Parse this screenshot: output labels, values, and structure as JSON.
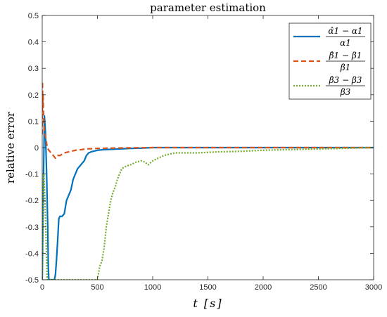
{
  "chart_data": {
    "type": "line",
    "title": "parameter estimation",
    "xlabel": "t [s]",
    "ylabel": "relative error",
    "xlim": [
      0,
      3000
    ],
    "ylim": [
      -0.5,
      0.5
    ],
    "xticks": [
      0,
      500,
      1000,
      1500,
      2000,
      2500,
      3000
    ],
    "yticks": [
      -0.5,
      -0.4,
      -0.3,
      -0.2,
      -0.1,
      0,
      0.1,
      0.2,
      0.3,
      0.4,
      0.5
    ],
    "xtick_labels": [
      "0",
      "500",
      "1000",
      "1500",
      "2000",
      "2500",
      "3000"
    ],
    "ytick_labels": [
      "-0.5",
      "-0.4",
      "-0.3",
      "-0.2",
      "-0.1",
      "0",
      "0.1",
      "0.2",
      "0.3",
      "0.4",
      "0.5"
    ],
    "legend_position": "top-right",
    "grid": false,
    "series": [
      {
        "name": "(α̂1 − α1) / α1",
        "legend_numerator": "α̂1 − α1",
        "legend_denominator": "α1",
        "color": "#0072BD",
        "style": "solid",
        "x": [
          0,
          2,
          6,
          12,
          20,
          30,
          40,
          50,
          55,
          60,
          70,
          80,
          90,
          100,
          110,
          120,
          130,
          140,
          150,
          160,
          180,
          200,
          220,
          240,
          260,
          280,
          300,
          320,
          340,
          360,
          380,
          400,
          420,
          450,
          500,
          550,
          600,
          650,
          700,
          800,
          900,
          1000,
          1200,
          1500,
          2000,
          2500,
          3000
        ],
        "y": [
          -0.5,
          -0.45,
          -0.3,
          -0.1,
          0.12,
          0.05,
          -0.1,
          -0.3,
          -0.45,
          -0.5,
          -0.5,
          -0.5,
          -0.5,
          -0.5,
          -0.5,
          -0.48,
          -0.42,
          -0.35,
          -0.27,
          -0.26,
          -0.26,
          -0.25,
          -0.2,
          -0.18,
          -0.16,
          -0.12,
          -0.1,
          -0.08,
          -0.07,
          -0.06,
          -0.05,
          -0.03,
          -0.02,
          -0.015,
          -0.01,
          -0.008,
          -0.007,
          -0.006,
          -0.005,
          -0.003,
          -0.002,
          0.0,
          0.0,
          0.0,
          0.0,
          0.0,
          0.0
        ]
      },
      {
        "name": "(β̂1 − β1) / β1",
        "legend_numerator": "β̂1 − β1",
        "legend_denominator": "β1",
        "color": "#D95319",
        "style": "dashed",
        "x": [
          0,
          2,
          5,
          8,
          12,
          18,
          25,
          35,
          45,
          60,
          80,
          100,
          120,
          140,
          160,
          180,
          200,
          250,
          300,
          350,
          400,
          500,
          600,
          800,
          1000,
          1500,
          2000,
          2500,
          3000
        ],
        "y": [
          0.05,
          0.25,
          0.15,
          0.2,
          0.12,
          0.06,
          0.05,
          0.03,
          0.0,
          -0.01,
          -0.02,
          -0.03,
          -0.04,
          -0.03,
          -0.03,
          -0.025,
          -0.02,
          -0.015,
          -0.01,
          -0.008,
          -0.005,
          -0.003,
          -0.002,
          -0.001,
          0.0,
          0.0,
          0.0,
          0.0,
          0.0
        ]
      },
      {
        "name": "(β̂3 − β3) / β3",
        "legend_numerator": "β̂3 − β3",
        "legend_denominator": "β3",
        "color": "#77AC30",
        "style": "dotted",
        "x": [
          0,
          3,
          8,
          15,
          25,
          35,
          45,
          60,
          80,
          100,
          200,
          300,
          400,
          480,
          500,
          520,
          540,
          560,
          580,
          600,
          620,
          640,
          660,
          680,
          700,
          720,
          740,
          760,
          800,
          850,
          900,
          930,
          960,
          1000,
          1050,
          1100,
          1150,
          1200,
          1300,
          1400,
          1500,
          1600,
          1700,
          1800,
          1900,
          2000,
          2100,
          2200,
          2300,
          2400,
          2500,
          2600,
          2700,
          2800,
          2900,
          3000
        ],
        "y": [
          -0.5,
          -0.35,
          -0.15,
          -0.1,
          -0.2,
          -0.35,
          -0.5,
          -0.5,
          -0.5,
          -0.5,
          -0.5,
          -0.5,
          -0.5,
          -0.5,
          -0.5,
          -0.45,
          -0.43,
          -0.38,
          -0.3,
          -0.25,
          -0.2,
          -0.17,
          -0.15,
          -0.12,
          -0.1,
          -0.08,
          -0.075,
          -0.07,
          -0.065,
          -0.055,
          -0.05,
          -0.055,
          -0.065,
          -0.05,
          -0.04,
          -0.03,
          -0.025,
          -0.02,
          -0.02,
          -0.02,
          -0.018,
          -0.016,
          -0.015,
          -0.014,
          -0.012,
          -0.01,
          -0.009,
          -0.008,
          -0.007,
          -0.006,
          -0.005,
          -0.004,
          -0.003,
          -0.002,
          -0.001,
          0.0
        ]
      }
    ]
  }
}
